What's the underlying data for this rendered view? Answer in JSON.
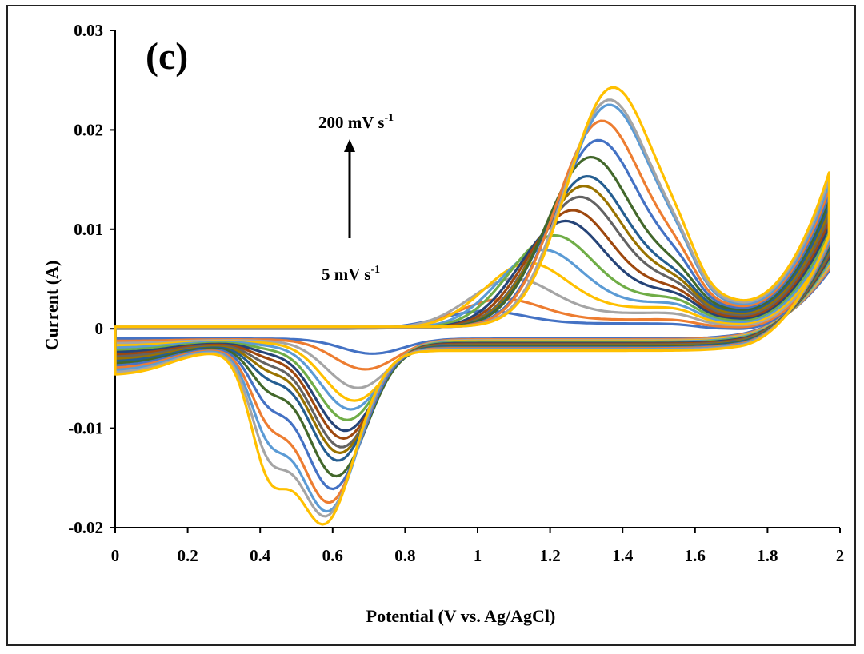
{
  "chart_data": {
    "type": "line",
    "panel_label": "(c)",
    "xlabel": "Potential (V vs. Ag/AgCl)",
    "ylabel": "Current (A)",
    "xlim": [
      0,
      2
    ],
    "ylim": [
      -0.02,
      0.03
    ],
    "x_ticks": [
      {
        "v": 0,
        "label": "0"
      },
      {
        "v": 0.2,
        "label": "0.2"
      },
      {
        "v": 0.4,
        "label": "0.4"
      },
      {
        "v": 0.6,
        "label": "0.6"
      },
      {
        "v": 0.8,
        "label": "0.8"
      },
      {
        "v": 1.0,
        "label": "1"
      },
      {
        "v": 1.2,
        "label": "1.2"
      },
      {
        "v": 1.4,
        "label": "1.4"
      },
      {
        "v": 1.6,
        "label": "1.6"
      },
      {
        "v": 1.8,
        "label": "1.8"
      },
      {
        "v": 2.0,
        "label": "2"
      }
    ],
    "y_ticks": [
      {
        "v": 0.03,
        "label": "0.03"
      },
      {
        "v": 0.02,
        "label": "0.02"
      },
      {
        "v": 0.01,
        "label": "0.01"
      },
      {
        "v": 0,
        "label": "0"
      },
      {
        "v": -0.01,
        "label": "-0.01"
      },
      {
        "v": -0.02,
        "label": "-0.02"
      }
    ],
    "annotations": {
      "top": {
        "main": "200 mV s",
        "sup": "-1"
      },
      "bottom": {
        "main": "5 mV s",
        "sup": "-1"
      }
    },
    "grid": false,
    "legend": "none",
    "series_colors": [
      "#4472c4",
      "#ed7d31",
      "#a5a5a5",
      "#ffc000",
      "#5b9bd5",
      "#70ad47",
      "#264478",
      "#9e480e",
      "#636363",
      "#997300",
      "#255e91",
      "#43682b",
      "#4472c4",
      "#ed7d31",
      "#5b9bd5",
      "#a5a5a5",
      "#ffc000"
    ],
    "series": [
      {
        "ox_peak": 0.0015,
        "ox_pos": 1.0,
        "red_peak": -0.0015,
        "red_pos": 0.71
      },
      {
        "ox_peak": 0.0025,
        "ox_pos": 1.05,
        "red_peak": -0.003,
        "red_pos": 0.69
      },
      {
        "ox_peak": 0.0042,
        "ox_pos": 1.08,
        "red_peak": -0.0048,
        "red_pos": 0.67
      },
      {
        "ox_peak": 0.0055,
        "ox_pos": 1.12,
        "red_peak": -0.006,
        "red_pos": 0.66
      },
      {
        "ox_peak": 0.0066,
        "ox_pos": 1.16,
        "red_peak": -0.0068,
        "red_pos": 0.65
      },
      {
        "ox_peak": 0.0078,
        "ox_pos": 1.19,
        "red_peak": -0.0078,
        "red_pos": 0.64
      },
      {
        "ox_peak": 0.009,
        "ox_pos": 1.22,
        "red_peak": -0.0088,
        "red_pos": 0.635
      },
      {
        "ox_peak": 0.0099,
        "ox_pos": 1.24,
        "red_peak": -0.0095,
        "red_pos": 0.63
      },
      {
        "ox_peak": 0.011,
        "ox_pos": 1.26,
        "red_peak": -0.0103,
        "red_pos": 0.625
      },
      {
        "ox_peak": 0.0119,
        "ox_pos": 1.27,
        "red_peak": -0.0108,
        "red_pos": 0.62
      },
      {
        "ox_peak": 0.0127,
        "ox_pos": 1.28,
        "red_peak": -0.0115,
        "red_pos": 0.615
      },
      {
        "ox_peak": 0.0143,
        "ox_pos": 1.29,
        "red_peak": -0.013,
        "red_pos": 0.61
      },
      {
        "ox_peak": 0.0157,
        "ox_pos": 1.31,
        "red_peak": -0.0142,
        "red_pos": 0.6
      },
      {
        "ox_peak": 0.0173,
        "ox_pos": 1.32,
        "red_peak": -0.0155,
        "red_pos": 0.59
      },
      {
        "ox_peak": 0.0186,
        "ox_pos": 1.34,
        "red_peak": -0.0163,
        "red_pos": 0.585
      },
      {
        "ox_peak": 0.019,
        "ox_pos": 1.34,
        "red_peak": -0.0167,
        "red_pos": 0.58
      },
      {
        "ox_peak": 0.02,
        "ox_pos": 1.35,
        "red_peak": -0.0174,
        "red_pos": 0.575
      }
    ]
  }
}
